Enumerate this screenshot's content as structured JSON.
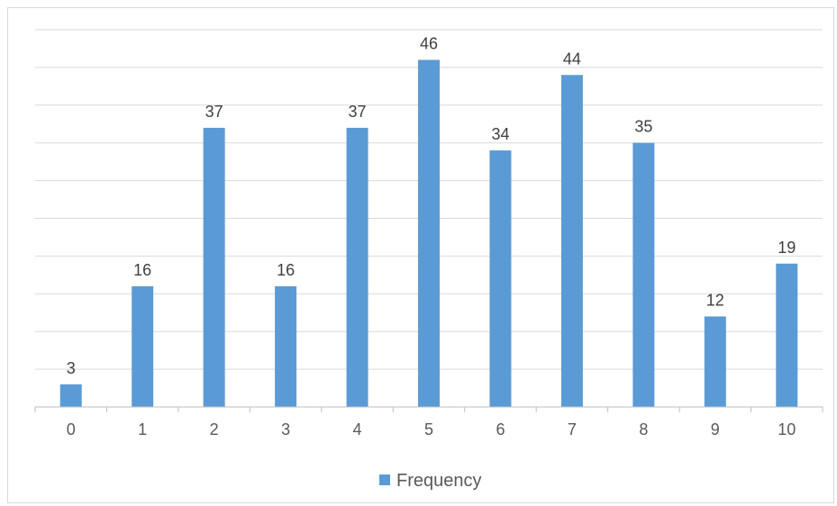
{
  "chart_data": {
    "type": "bar",
    "categories": [
      "0",
      "1",
      "2",
      "3",
      "4",
      "5",
      "6",
      "7",
      "8",
      "9",
      "10"
    ],
    "series": [
      {
        "name": "Frequency",
        "values": [
          3,
          16,
          37,
          16,
          37,
          46,
          34,
          44,
          35,
          12,
          19
        ],
        "color": "#5b9bd5"
      }
    ],
    "ylim": [
      0,
      50
    ],
    "ygrid_step": 5,
    "grid": true,
    "data_labels": true,
    "legend": {
      "position": "bottom",
      "label": "Frequency"
    },
    "colors": {
      "gridline": "#d9d9d9",
      "axis": "#bfbfbf",
      "text": "#595959"
    }
  }
}
